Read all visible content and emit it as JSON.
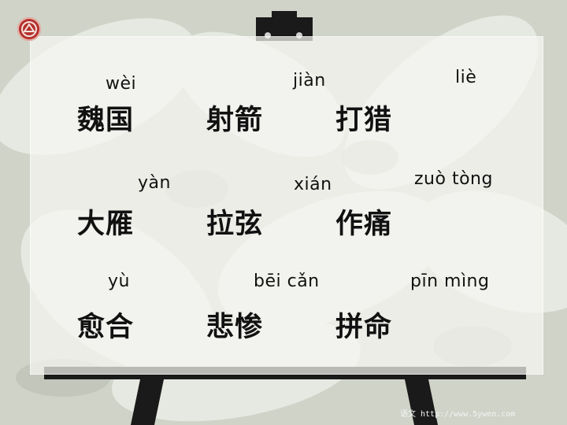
{
  "pinyin": {
    "p1": "wèi",
    "p2": "jiàn",
    "p3": "liè",
    "p4": "yàn",
    "p5": "xián",
    "p6": "zuò tòng",
    "p7": "yù",
    "p8": "bēi cǎn",
    "p9": "pīn mìng"
  },
  "words": {
    "w1": "魏国",
    "w2": "射箭",
    "w3": "打猎",
    "w4": "大雁",
    "w5": "拉弦",
    "w6": "作痛",
    "w7": "愈合",
    "w8": "悲惨",
    "w9": "拼命"
  },
  "watermark": "语文 http://www.5ywen.com",
  "colors": {
    "logo": "#b5302e",
    "easel": "#1a1a1a",
    "board": "#f6f7f2"
  },
  "icons": {
    "logo": "red-round-logo-icon"
  }
}
